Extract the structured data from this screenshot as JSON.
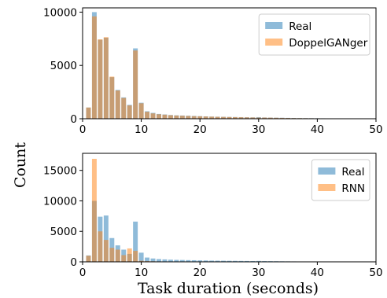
{
  "figure": {
    "ylabel": "Count",
    "xlabel": "Task duration (seconds)"
  },
  "chart_data": [
    {
      "type": "bar",
      "bin_width": 1,
      "xlim": [
        0,
        50
      ],
      "ylim": [
        0,
        10400
      ],
      "xticks": [
        0,
        10,
        20,
        30,
        40,
        50
      ],
      "yticks": [
        0,
        5000,
        10000
      ],
      "legend_position": "top-right",
      "colors": {
        "Real": "#1f77b4",
        "DoppelGANger": "#ff7f0e"
      },
      "x": [
        1,
        2,
        3,
        4,
        5,
        6,
        7,
        8,
        9,
        10,
        11,
        12,
        13,
        14,
        15,
        16,
        17,
        18,
        19,
        20,
        21,
        22,
        23,
        24,
        25,
        26,
        27,
        28,
        29,
        30,
        31,
        32,
        33,
        34,
        35,
        36,
        37,
        38,
        39,
        40,
        41,
        42,
        43,
        44,
        45,
        46,
        47,
        48,
        49
      ],
      "series": [
        {
          "name": "Real",
          "values": [
            1050,
            10000,
            7400,
            7600,
            3900,
            2700,
            2000,
            1300,
            6600,
            1500,
            700,
            550,
            450,
            400,
            350,
            320,
            300,
            280,
            260,
            240,
            220,
            200,
            190,
            180,
            170,
            160,
            150,
            140,
            130,
            150,
            120,
            110,
            100,
            90,
            80,
            70,
            60,
            55,
            50,
            45,
            40,
            35,
            30,
            25,
            20,
            15,
            10,
            8,
            5
          ]
        },
        {
          "name": "DoppelGANger",
          "values": [
            1050,
            9600,
            7450,
            7650,
            3950,
            2650,
            1950,
            1250,
            6400,
            1450,
            650,
            500,
            420,
            380,
            330,
            300,
            280,
            260,
            240,
            230,
            210,
            195,
            180,
            170,
            160,
            150,
            140,
            130,
            120,
            110,
            110,
            100,
            90,
            80,
            70,
            60,
            55,
            50,
            45,
            40,
            35,
            30,
            25,
            20,
            15,
            12,
            10,
            8,
            5
          ]
        }
      ]
    },
    {
      "type": "bar",
      "bin_width": 1,
      "xlim": [
        0,
        50
      ],
      "ylim": [
        0,
        17800
      ],
      "xticks": [
        0,
        10,
        20,
        30,
        40,
        50
      ],
      "yticks": [
        0,
        5000,
        10000,
        15000
      ],
      "legend_position": "top-right",
      "colors": {
        "Real": "#1f77b4",
        "RNN": "#ff7f0e"
      },
      "x": [
        1,
        2,
        3,
        4,
        5,
        6,
        7,
        8,
        9,
        10,
        11,
        12,
        13,
        14,
        15,
        16,
        17,
        18,
        19,
        20,
        21,
        22,
        23,
        24,
        25,
        26,
        27,
        28,
        29,
        30,
        31,
        32,
        33,
        34,
        35,
        36,
        37,
        38,
        39,
        40,
        41,
        42,
        43,
        44,
        45,
        46,
        47,
        48,
        49
      ],
      "series": [
        {
          "name": "Real",
          "values": [
            1050,
            10000,
            7400,
            7600,
            3900,
            2700,
            2000,
            1300,
            6600,
            1500,
            700,
            550,
            450,
            400,
            350,
            320,
            300,
            280,
            260,
            240,
            220,
            200,
            190,
            180,
            170,
            160,
            150,
            140,
            130,
            150,
            120,
            110,
            100,
            90,
            80,
            70,
            60,
            55,
            50,
            45,
            40,
            35,
            30,
            25,
            20,
            15,
            10,
            8,
            5
          ]
        },
        {
          "name": "RNN",
          "values": [
            1000,
            16900,
            5000,
            3600,
            2300,
            2000,
            1100,
            2200,
            1800,
            180,
            120,
            90,
            70,
            50,
            40,
            30,
            25,
            20,
            15,
            12,
            10,
            8,
            6,
            5,
            4,
            3,
            3,
            2,
            2,
            2,
            1,
            1,
            1,
            1,
            1,
            1,
            1,
            1,
            1,
            1,
            1,
            1,
            1,
            1,
            1,
            1,
            1,
            1,
            1
          ]
        }
      ]
    }
  ]
}
